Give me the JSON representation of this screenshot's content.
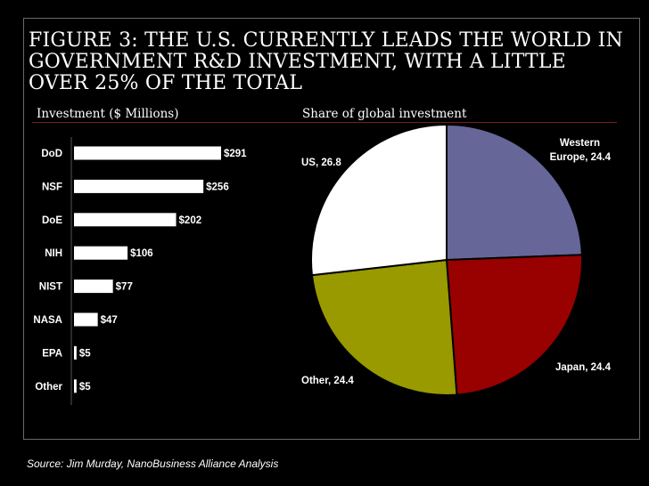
{
  "title": "FIGURE 3: THE U.S. CURRENTLY LEADS THE WORLD IN GOVERNMENT R&D INVESTMENT, WITH A LITTLE OVER 25% OF THE TOTAL",
  "source": "Source: Jim Murday, NanoBusiness Alliance Analysis",
  "colors": {
    "background": "#000000",
    "bar": "#ffffff",
    "rule": "#7a1a1a"
  },
  "chart_data": [
    {
      "type": "bar",
      "orientation": "horizontal",
      "title": "Investment ($ Millions)",
      "categories": [
        "DoD",
        "NSF",
        "DoE",
        "NIH",
        "NIST",
        "NASA",
        "EPA",
        "Other"
      ],
      "values": [
        291,
        256,
        202,
        106,
        77,
        47,
        5,
        5
      ],
      "value_labels": [
        "$291",
        "$256",
        "$202",
        "$106",
        "$77",
        "$47",
        "$5",
        "$5"
      ],
      "xlim": [
        0,
        291
      ]
    },
    {
      "type": "pie",
      "title": "Share of global investment",
      "slices": [
        {
          "label": "Western Europe",
          "value": 24.4,
          "display": "Western Europe, 24.4",
          "lines": [
            "Western",
            "Europe, 24.4"
          ],
          "color": "#666699"
        },
        {
          "label": "Japan",
          "value": 24.4,
          "display": "Japan, 24.4",
          "lines": [
            "Japan, 24.4"
          ],
          "color": "#990000"
        },
        {
          "label": "Other",
          "value": 24.4,
          "display": "Other, 24.4",
          "lines": [
            "Other, 24.4"
          ],
          "color": "#999900"
        },
        {
          "label": "US",
          "value": 26.8,
          "display": "US, 26.8",
          "lines": [
            "US, 26.8"
          ],
          "color": "#ffffff"
        }
      ]
    }
  ]
}
